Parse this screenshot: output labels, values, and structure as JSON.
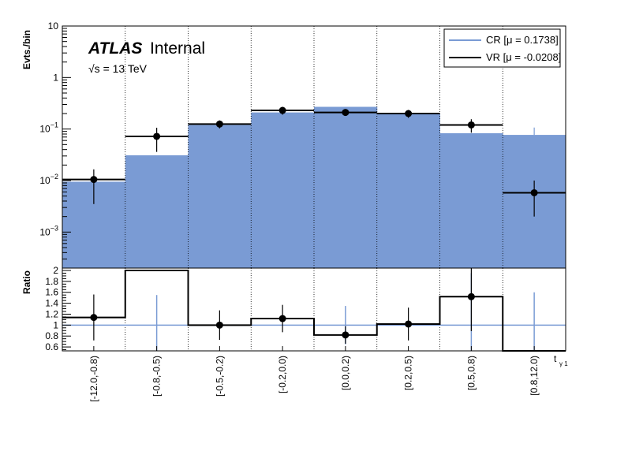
{
  "chart_data": {
    "type": "bar",
    "categories": [
      "[-12.0,-0.8)",
      "[-0.8,-0.5)",
      "[-0.5,-0.2)",
      "[-0.2,0.0)",
      "[0.0,0.2)",
      "[0.2,0.5)",
      "[0.5,0.8)",
      "[0.8,12.0)"
    ],
    "xlabel": "t",
    "xlabel_sub": "γ 1",
    "ylabel": "Evts./bin",
    "yscale": "log",
    "ylim": [
      0.0002,
      10
    ],
    "yticks": [
      {
        "value": 10,
        "base": "10",
        "exp": ""
      },
      {
        "value": 1,
        "base": "1",
        "exp": ""
      },
      {
        "value": 0.1,
        "base": "10",
        "exp": "−1"
      },
      {
        "value": 0.01,
        "base": "10",
        "exp": "−2"
      },
      {
        "value": 0.001,
        "base": "10",
        "exp": "−3"
      }
    ],
    "atlas_label": "ATLAS",
    "atlas_status": "Internal",
    "energy_label": "√s = 13 TeV",
    "grid_x": true,
    "legend_position": "top-right",
    "series": [
      {
        "name": "CR [μ = 0.1738]",
        "style": "filled",
        "color": "#7a9bd4",
        "values": [
          0.0095,
          0.031,
          0.12,
          0.21,
          0.27,
          0.2,
          0.083,
          0.077
        ],
        "errors": [
          0.0,
          0.0,
          0.0,
          0.0,
          0.0,
          0.0,
          0.0,
          0.03
        ]
      },
      {
        "name": "VR [μ = -0.0208]",
        "style": "points",
        "color": "#000000",
        "values": [
          0.0105,
          0.072,
          0.125,
          0.23,
          0.21,
          0.2,
          0.12,
          0.0058
        ],
        "err_low": [
          0.007,
          0.036,
          0.022,
          0.04,
          0.03,
          0.035,
          0.035,
          0.0038
        ],
        "err_high": [
          0.006,
          0.034,
          0.022,
          0.04,
          0.03,
          0.035,
          0.035,
          0.0042
        ]
      }
    ],
    "ratio": {
      "ylabel": "Ratio",
      "ylim": [
        0.5,
        2.0
      ],
      "yticks": [
        "2",
        "1.8",
        "1.6",
        "1.4",
        "1.2",
        "1",
        "0.8",
        "0.6"
      ],
      "ytick_values": [
        2.0,
        1.8,
        1.6,
        1.4,
        1.2,
        1.0,
        0.8,
        0.6
      ],
      "reference": 1.0,
      "values": [
        1.14,
        2.0,
        1.0,
        1.12,
        0.82,
        1.02,
        1.52,
        0.5
      ],
      "err": [
        0.42,
        0.0,
        0.27,
        0.25,
        0.16,
        0.3,
        0.63,
        0.0
      ],
      "cr_errors": [
        0.0,
        0.55,
        0.0,
        0.0,
        0.35,
        0.0,
        0.95,
        0.6
      ]
    }
  }
}
